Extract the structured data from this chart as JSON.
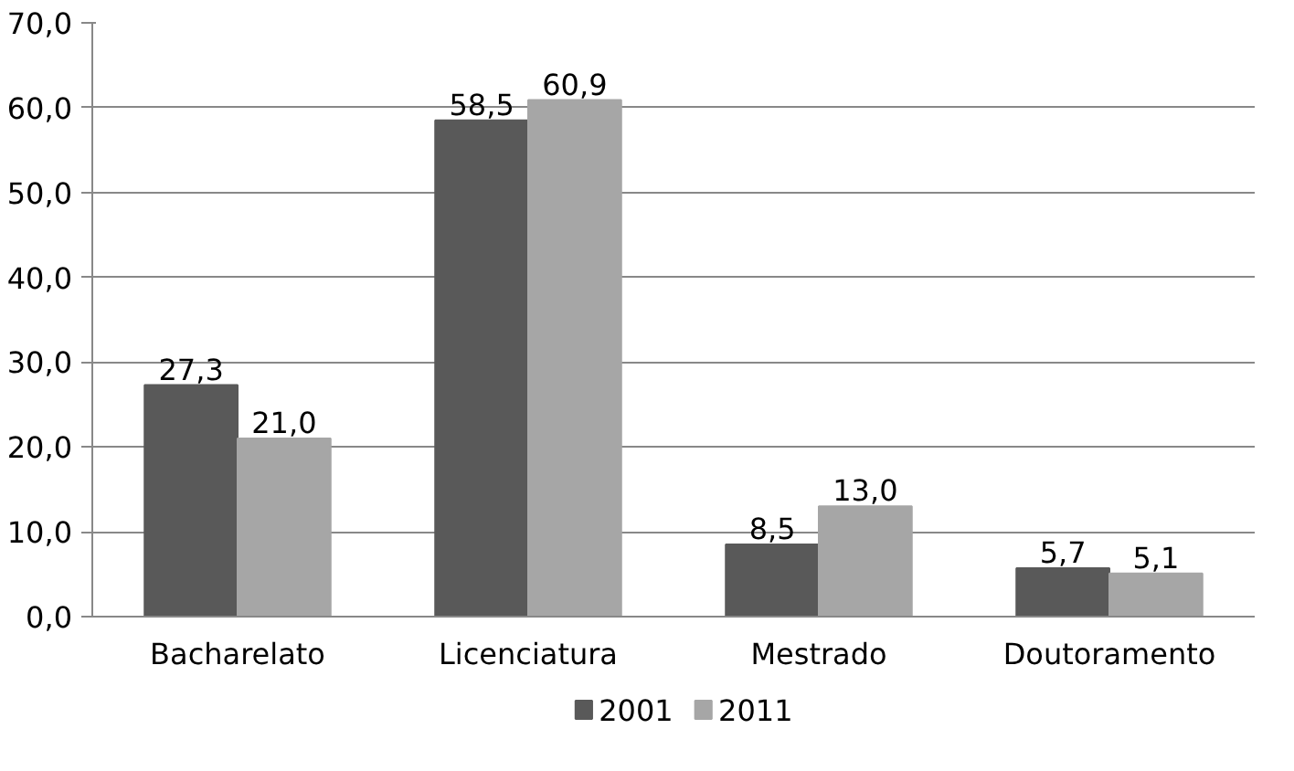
{
  "chart_data": {
    "type": "bar",
    "categories": [
      "Bacharelato",
      "Licenciatura",
      "Mestrado",
      "Doutoramento"
    ],
    "series": [
      {
        "name": "2001",
        "color": "#595959",
        "values": [
          27.3,
          58.5,
          8.5,
          5.7
        ],
        "value_labels": [
          "27,3",
          "58,5",
          "8,5",
          "5,7"
        ]
      },
      {
        "name": "2011",
        "color": "#a6a6a6",
        "values": [
          21.0,
          60.9,
          13.0,
          5.1
        ],
        "value_labels": [
          "21,0",
          "60,9",
          "13,0",
          "5,1"
        ]
      }
    ],
    "ylim": [
      0,
      70
    ],
    "yticks": [
      {
        "value": 0,
        "label": "0,0"
      },
      {
        "value": 10,
        "label": "10,0"
      },
      {
        "value": 20,
        "label": "20,0"
      },
      {
        "value": 30,
        "label": "30,0"
      },
      {
        "value": 40,
        "label": "40,0"
      },
      {
        "value": 50,
        "label": "50,0"
      },
      {
        "value": 60,
        "label": "60,0"
      },
      {
        "value": 70,
        "label": "70,0"
      }
    ],
    "grid": "y",
    "legend": "bottom"
  }
}
